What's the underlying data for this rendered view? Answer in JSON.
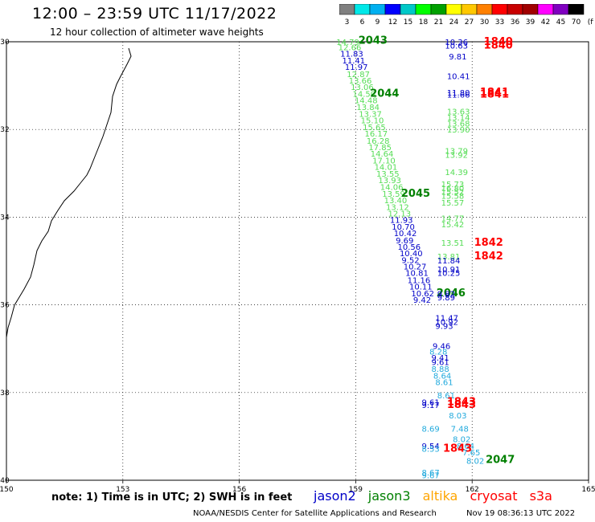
{
  "title": "12:00 – 23:59 UTC 11/17/2022",
  "subtitle": "12 hour collection of altimeter wave heights",
  "colorbar": {
    "colors": [
      "#808080",
      "#00e8e8",
      "#00b0f0",
      "#0000ff",
      "#00c8c8",
      "#00ff00",
      "#00a000",
      "#ffff00",
      "#ffc800",
      "#ff8000",
      "#ff0000",
      "#c80000",
      "#a00000",
      "#ff00ff",
      "#8000c0",
      "#000000"
    ],
    "labels": [
      "3",
      "6",
      "9",
      "12",
      "15",
      "18",
      "21",
      "24",
      "27",
      "30",
      "33",
      "36",
      "39",
      "42",
      "45",
      "70",
      "(ft)"
    ]
  },
  "axes": {
    "lat_labels": [
      "30",
      "32",
      "34",
      "36",
      "38",
      "40"
    ],
    "lon_labels": [
      "150",
      "153",
      "156",
      "159",
      "162",
      "165"
    ]
  },
  "colors": {
    "jason2": "#0000c8",
    "jason3": "#008000",
    "jason3_light": "#55dd55",
    "altika": "#ffa500",
    "cryosat": "#ff0000",
    "s3a": "#ff0000",
    "cyan": "#22aadd"
  },
  "labels": [
    {
      "t": "14.79",
      "c": "light",
      "lon": 158.5,
      "lat": 30.0
    },
    {
      "t": "2043",
      "c": "green",
      "lon": 159.07,
      "lat": 29.97,
      "big": true
    },
    {
      "t": "12.66",
      "c": "light",
      "lon": 158.55,
      "lat": 30.12
    },
    {
      "t": "11.83",
      "c": "blue",
      "lon": 158.6,
      "lat": 30.27
    },
    {
      "t": "11.41",
      "c": "blue",
      "lon": 158.65,
      "lat": 30.42
    },
    {
      "t": "11.97",
      "c": "blue",
      "lon": 158.72,
      "lat": 30.57
    },
    {
      "t": "12.87",
      "c": "light",
      "lon": 158.77,
      "lat": 30.73
    },
    {
      "t": "13.66",
      "c": "light",
      "lon": 158.82,
      "lat": 30.88
    },
    {
      "t": "13.06",
      "c": "light",
      "lon": 158.87,
      "lat": 31.03
    },
    {
      "t": "14.50",
      "c": "light",
      "lon": 158.92,
      "lat": 31.18
    },
    {
      "t": "2044",
      "c": "green",
      "lon": 159.37,
      "lat": 31.18,
      "big": true
    },
    {
      "t": "14.48",
      "c": "light",
      "lon": 158.97,
      "lat": 31.33
    },
    {
      "t": "13.84",
      "c": "light",
      "lon": 159.02,
      "lat": 31.48
    },
    {
      "t": "13.37",
      "c": "light",
      "lon": 159.08,
      "lat": 31.64
    },
    {
      "t": "15.10",
      "c": "light",
      "lon": 159.13,
      "lat": 31.79
    },
    {
      "t": "15.65",
      "c": "light",
      "lon": 159.18,
      "lat": 31.94
    },
    {
      "t": "16.17",
      "c": "light",
      "lon": 159.23,
      "lat": 32.09
    },
    {
      "t": "16.28",
      "c": "light",
      "lon": 159.28,
      "lat": 32.25
    },
    {
      "t": "17.85",
      "c": "light",
      "lon": 159.33,
      "lat": 32.4
    },
    {
      "t": "14.64",
      "c": "light",
      "lon": 159.38,
      "lat": 32.55
    },
    {
      "t": "17.10",
      "c": "light",
      "lon": 159.43,
      "lat": 32.7
    },
    {
      "t": "14.01",
      "c": "light",
      "lon": 159.48,
      "lat": 32.85
    },
    {
      "t": "13.55",
      "c": "light",
      "lon": 159.53,
      "lat": 33.0
    },
    {
      "t": "13.93",
      "c": "light",
      "lon": 159.58,
      "lat": 33.15
    },
    {
      "t": "14.06",
      "c": "light",
      "lon": 159.63,
      "lat": 33.31
    },
    {
      "t": "13.59",
      "c": "light",
      "lon": 159.68,
      "lat": 33.46
    },
    {
      "t": "2045",
      "c": "green",
      "lon": 160.17,
      "lat": 33.46,
      "big": true
    },
    {
      "t": "13.40",
      "c": "light",
      "lon": 159.73,
      "lat": 33.61
    },
    {
      "t": "13.12",
      "c": "light",
      "lon": 159.78,
      "lat": 33.76
    },
    {
      "t": "12.13",
      "c": "light",
      "lon": 159.83,
      "lat": 33.91
    },
    {
      "t": "11.93",
      "c": "blue",
      "lon": 159.88,
      "lat": 34.06
    },
    {
      "t": "10.70",
      "c": "blue",
      "lon": 159.93,
      "lat": 34.21
    },
    {
      "t": "10.42",
      "c": "blue",
      "lon": 159.98,
      "lat": 34.36
    },
    {
      "t": "9.69",
      "c": "blue",
      "lon": 160.03,
      "lat": 34.52
    },
    {
      "t": "10.56",
      "c": "blue",
      "lon": 160.08,
      "lat": 34.67
    },
    {
      "t": "10.40",
      "c": "blue",
      "lon": 160.13,
      "lat": 34.82
    },
    {
      "t": "9.52",
      "c": "blue",
      "lon": 160.18,
      "lat": 34.97
    },
    {
      "t": "10.27",
      "c": "blue",
      "lon": 160.23,
      "lat": 35.12
    },
    {
      "t": "10.81",
      "c": "blue",
      "lon": 160.28,
      "lat": 35.27
    },
    {
      "t": "11.16",
      "c": "blue",
      "lon": 160.33,
      "lat": 35.43
    },
    {
      "t": "10.11",
      "c": "blue",
      "lon": 160.38,
      "lat": 35.58
    },
    {
      "t": "10.62",
      "c": "blue",
      "lon": 160.43,
      "lat": 35.73
    },
    {
      "t": "2046",
      "c": "green",
      "lon": 161.08,
      "lat": 35.73,
      "big": true
    },
    {
      "t": "9.42",
      "c": "blue",
      "lon": 160.48,
      "lat": 35.88
    },
    {
      "t": "10.36",
      "c": "blue",
      "lon": 161.3,
      "lat": 30.0
    },
    {
      "t": "10.63",
      "c": "blue",
      "lon": 161.3,
      "lat": 30.08
    },
    {
      "t": "1840",
      "c": "red",
      "lon": 162.3,
      "lat": 30.0,
      "big": true
    },
    {
      "t": "1840",
      "c": "red",
      "lon": 162.3,
      "lat": 30.08,
      "big": true
    },
    {
      "t": "9.81",
      "c": "blue",
      "lon": 161.4,
      "lat": 30.33
    },
    {
      "t": "10.41",
      "c": "blue",
      "lon": 161.35,
      "lat": 30.78
    },
    {
      "t": "11.80",
      "c": "blue",
      "lon": 161.35,
      "lat": 31.15
    },
    {
      "t": "11.66",
      "c": "blue",
      "lon": 161.35,
      "lat": 31.2
    },
    {
      "t": "1841",
      "c": "red",
      "lon": 162.2,
      "lat": 31.15,
      "big": true
    },
    {
      "t": "1841",
      "c": "red",
      "lon": 162.2,
      "lat": 31.2,
      "big": true
    },
    {
      "t": "13.63",
      "c": "light",
      "lon": 161.35,
      "lat": 31.58
    },
    {
      "t": "13.14",
      "c": "light",
      "lon": 161.35,
      "lat": 31.72
    },
    {
      "t": "13.68",
      "c": "light",
      "lon": 161.35,
      "lat": 31.86
    },
    {
      "t": "13.90",
      "c": "light",
      "lon": 161.35,
      "lat": 32.0
    },
    {
      "t": "13.79",
      "c": "light",
      "lon": 161.3,
      "lat": 32.48
    },
    {
      "t": "13.92",
      "c": "light",
      "lon": 161.3,
      "lat": 32.57
    },
    {
      "t": "14.39",
      "c": "light",
      "lon": 161.3,
      "lat": 32.97
    },
    {
      "t": "15.73",
      "c": "light",
      "lon": 161.2,
      "lat": 33.24
    },
    {
      "t": "16.80",
      "c": "light",
      "lon": 161.2,
      "lat": 33.33
    },
    {
      "t": "15.52",
      "c": "light",
      "lon": 161.2,
      "lat": 33.42
    },
    {
      "t": "15.58",
      "c": "light",
      "lon": 161.2,
      "lat": 33.51
    },
    {
      "t": "15.57",
      "c": "light",
      "lon": 161.2,
      "lat": 33.66
    },
    {
      "t": "14.77",
      "c": "light",
      "lon": 161.2,
      "lat": 34.02
    },
    {
      "t": "15.42",
      "c": "light",
      "lon": 161.2,
      "lat": 34.16
    },
    {
      "t": "13.51",
      "c": "light",
      "lon": 161.2,
      "lat": 34.58
    },
    {
      "t": "1842",
      "c": "red",
      "lon": 162.05,
      "lat": 34.58,
      "big": true
    },
    {
      "t": "13.81",
      "c": "light",
      "lon": 161.1,
      "lat": 34.89
    },
    {
      "t": "11.84",
      "c": "blue",
      "lon": 161.1,
      "lat": 34.98
    },
    {
      "t": "1842",
      "c": "red",
      "lon": 162.05,
      "lat": 34.89,
      "big": true
    },
    {
      "t": "10.91",
      "c": "blue",
      "lon": 161.1,
      "lat": 35.18
    },
    {
      "t": "10.25",
      "c": "blue",
      "lon": 161.1,
      "lat": 35.27
    },
    {
      "t": "9.82",
      "c": "blue",
      "lon": 161.1,
      "lat": 35.74
    },
    {
      "t": "9.89",
      "c": "blue",
      "lon": 161.1,
      "lat": 35.82
    },
    {
      "t": "11.47",
      "c": "blue",
      "lon": 161.05,
      "lat": 36.29
    },
    {
      "t": "10.92",
      "c": "blue",
      "lon": 161.05,
      "lat": 36.38
    },
    {
      "t": "9.93",
      "c": "blue",
      "lon": 161.05,
      "lat": 36.47
    },
    {
      "t": "9.46",
      "c": "blue",
      "lon": 160.98,
      "lat": 36.93
    },
    {
      "t": "8.28",
      "c": "cyan",
      "lon": 160.9,
      "lat": 37.06
    },
    {
      "t": "9.41",
      "c": "blue",
      "lon": 160.95,
      "lat": 37.2
    },
    {
      "t": "9.61",
      "c": "blue",
      "lon": 160.95,
      "lat": 37.3
    },
    {
      "t": "8.88",
      "c": "cyan",
      "lon": 160.95,
      "lat": 37.45
    },
    {
      "t": "8.64",
      "c": "cyan",
      "lon": 161.0,
      "lat": 37.61
    },
    {
      "t": "8.61",
      "c": "cyan",
      "lon": 161.05,
      "lat": 37.76
    },
    {
      "t": "8.61",
      "c": "cyan",
      "lon": 161.1,
      "lat": 38.06
    },
    {
      "t": "9.61",
      "c": "blue",
      "lon": 160.7,
      "lat": 38.21
    },
    {
      "t": "9.17",
      "c": "blue",
      "lon": 160.7,
      "lat": 38.28
    },
    {
      "t": "1843",
      "c": "red",
      "lon": 161.35,
      "lat": 38.21,
      "big": true
    },
    {
      "t": "1843",
      "c": "red",
      "lon": 161.35,
      "lat": 38.28,
      "big": true
    },
    {
      "t": "8.03",
      "c": "cyan",
      "lon": 161.4,
      "lat": 38.52
    },
    {
      "t": "8.69",
      "c": "cyan",
      "lon": 160.7,
      "lat": 38.82
    },
    {
      "t": "7.48",
      "c": "cyan",
      "lon": 161.45,
      "lat": 38.82
    },
    {
      "t": "8.02",
      "c": "cyan",
      "lon": 161.5,
      "lat": 39.06
    },
    {
      "t": "9.54",
      "c": "blue",
      "lon": 160.7,
      "lat": 39.21
    },
    {
      "t": "8.53",
      "c": "cyan",
      "lon": 160.7,
      "lat": 39.28
    },
    {
      "t": "8.64",
      "c": "cyan",
      "lon": 161.6,
      "lat": 39.21
    },
    {
      "t": "1843",
      "c": "red",
      "lon": 161.25,
      "lat": 39.28,
      "big": true
    },
    {
      "t": "7.65",
      "c": "cyan",
      "lon": 161.75,
      "lat": 39.36
    },
    {
      "t": "8.02",
      "c": "cyan",
      "lon": 161.85,
      "lat": 39.55
    },
    {
      "t": "2047",
      "c": "green",
      "lon": 162.35,
      "lat": 39.53,
      "big": true
    },
    {
      "t": "8.67",
      "c": "cyan",
      "lon": 160.7,
      "lat": 39.82
    },
    {
      "t": "9.67",
      "c": "cyan",
      "lon": 160.7,
      "lat": 39.88
    }
  ],
  "note": "note: 1) Time is in UTC; 2) SWH is in feet",
  "legend": [
    {
      "name": "jason2",
      "color": "#0000c8"
    },
    {
      "name": "jason3",
      "color": "#008000"
    },
    {
      "name": "altika",
      "color": "#ffa500"
    },
    {
      "name": "cryosat",
      "color": "#ff0000"
    },
    {
      "name": "s3a",
      "color": "#ff0000"
    }
  ],
  "credit": "NOAA/NESDIS Center for Satellite Applications and Research",
  "timestamp": "Nov 19 08:36:13 UTC 2022"
}
